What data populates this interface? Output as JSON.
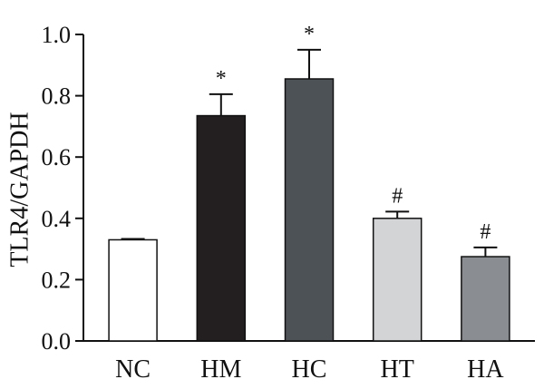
{
  "chart_data": {
    "type": "bar",
    "title": "",
    "xlabel": "",
    "ylabel": "TLR4/GAPDH",
    "categories": [
      "NC",
      "HM",
      "HC",
      "HT",
      "HA"
    ],
    "values": [
      0.33,
      0.735,
      0.855,
      0.4,
      0.275
    ],
    "errors": [
      0.003,
      0.07,
      0.095,
      0.022,
      0.03
    ],
    "annotations": [
      "",
      "*",
      "*",
      "#",
      "#"
    ],
    "colors": [
      "#ffffff",
      "#231f20",
      "#4d5256",
      "#d2d4d6",
      "#8a8e92"
    ],
    "ylim": [
      0,
      1.0
    ],
    "yticks": [
      "0.0",
      "0.2",
      "0.4",
      "0.6",
      "0.8",
      "1.0"
    ],
    "grid": false,
    "legend": "none"
  }
}
